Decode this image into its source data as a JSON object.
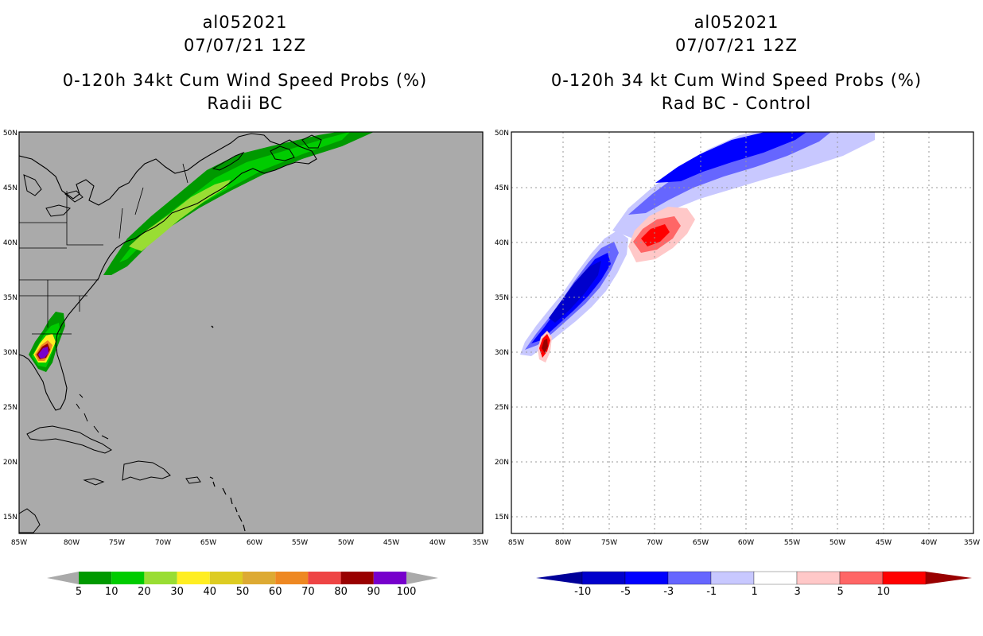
{
  "left_panel": {
    "titles": [
      "al052021",
      "07/07/21 12Z",
      "0-120h 34kt Cum Wind Speed Probs (%)",
      "Radii BC"
    ]
  },
  "right_panel": {
    "titles": [
      "al052021",
      "07/07/21 12Z",
      "0-120h 34 kt Cum Wind Speed Probs (%)",
      "Rad BC - Control"
    ]
  },
  "lat_labels": [
    "50N",
    "45N",
    "40N",
    "35N",
    "30N",
    "25N",
    "20N",
    "15N"
  ],
  "lon_labels": [
    "85W",
    "80W",
    "75W",
    "70W",
    "65W",
    "60W",
    "55W",
    "50W",
    "45W",
    "40W",
    "35W"
  ],
  "colorbar_left": {
    "labels": [
      "5",
      "10",
      "20",
      "30",
      "40",
      "50",
      "60",
      "70",
      "80",
      "90",
      "100"
    ],
    "colors": [
      "#009900",
      "#00cc00",
      "#99dd33",
      "#ffee22",
      "#ddcc22",
      "#ddaa33",
      "#ee8822",
      "#ee4444",
      "#990000",
      "#7700cc"
    ],
    "arrow_color": "#aaaaaa"
  },
  "colorbar_right": {
    "labels": [
      "-10",
      "-5",
      "-3",
      "-1",
      "1",
      "3",
      "5",
      "10"
    ],
    "colors": [
      "#0000cc",
      "#0000ff",
      "#6666ff",
      "#c8c8ff",
      "#ffffff",
      "#ffc8c8",
      "#ff6666",
      "#ff0000"
    ],
    "low_arrow": "#000099",
    "high_arrow": "#990000"
  }
}
